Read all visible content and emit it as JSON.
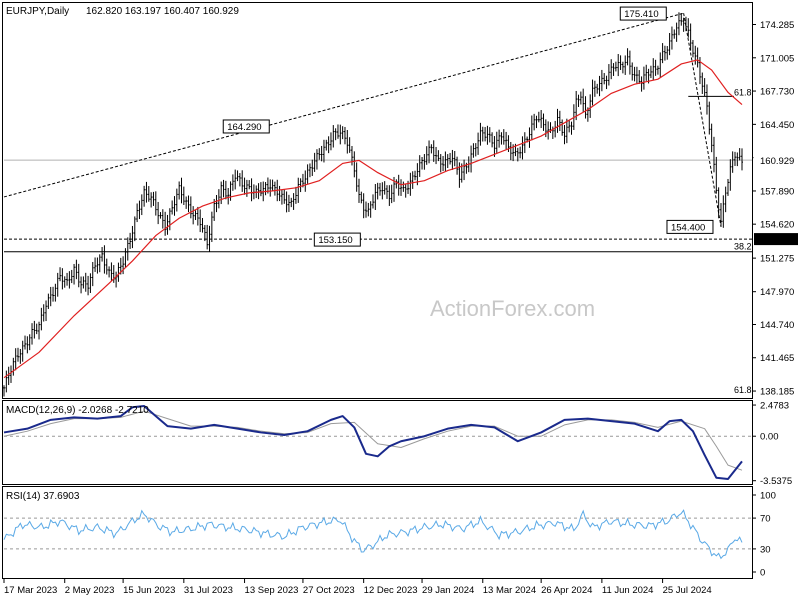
{
  "header": {
    "symbol": "EURJPY,Daily",
    "ohlc": "162.820 163.197 160.407 160.929"
  },
  "watermark": "ActionForex.com",
  "colors": {
    "candles": "#000000",
    "ma": "#e02020",
    "macd": "#1a2a8c",
    "signal": "#9a9a9a",
    "rsi": "#5aa9e6",
    "watermark": "#c8c8c8"
  },
  "chart_data": [
    {
      "type": "candlestick",
      "panel": "price",
      "title": "EURJPY,Daily",
      "y_ticks": [
        174.285,
        171.005,
        167.73,
        164.45,
        161.17,
        157.89,
        154.62,
        151.275,
        147.97,
        144.74,
        141.465,
        138.185
      ],
      "ylim": [
        137.5,
        176.5
      ],
      "current_price_label": "160.929",
      "current_price": 160.929,
      "support_line_label": "153.150",
      "support_level": 153.15,
      "annotations": [
        {
          "label": "175.410",
          "value": 175.41,
          "kind": "swing-high"
        },
        {
          "label": "164.290",
          "value": 164.29,
          "kind": "swing-high"
        },
        {
          "label": "153.150",
          "value": 153.15,
          "kind": "swing-low"
        },
        {
          "label": "154.400",
          "value": 154.4,
          "kind": "swing-low"
        }
      ],
      "fibonacci_labels": [
        "61.8",
        "38.2",
        "61.8"
      ],
      "series": [
        {
          "name": "EURJPY,Daily",
          "close_path": [
            [
              0,
              138.5
            ],
            [
              3,
              140.2
            ],
            [
              6,
              141.8
            ],
            [
              9,
              142.9
            ],
            [
              12,
              143.9
            ],
            [
              15,
              144.4
            ],
            [
              18,
              146.8
            ],
            [
              21,
              148.1
            ],
            [
              24,
              149.5
            ],
            [
              27,
              148.6
            ],
            [
              30,
              150.2
            ],
            [
              33,
              149.0
            ],
            [
              36,
              148.6
            ],
            [
              39,
              150.4
            ],
            [
              42,
              151.5
            ],
            [
              45,
              150.0
            ],
            [
              48,
              149.4
            ],
            [
              51,
              150.8
            ],
            [
              54,
              153.2
            ],
            [
              57,
              156.0
            ],
            [
              60,
              157.6
            ],
            [
              63,
              157.0
            ],
            [
              66,
              155.8
            ],
            [
              69,
              154.6
            ],
            [
              72,
              156.1
            ],
            [
              75,
              157.9
            ],
            [
              78,
              156.8
            ],
            [
              81,
              155.8
            ],
            [
              84,
              154.8
            ],
            [
              87,
              152.5
            ],
            [
              90,
              156.5
            ],
            [
              93,
              158.3
            ],
            [
              96,
              157.4
            ],
            [
              99,
              159.3
            ],
            [
              102,
              158.7
            ],
            [
              105,
              158.3
            ],
            [
              108,
              157.6
            ],
            [
              111,
              157.9
            ],
            [
              114,
              158.6
            ],
            [
              117,
              158.0
            ],
            [
              120,
              156.8
            ],
            [
              123,
              156.4
            ],
            [
              126,
              158.5
            ],
            [
              129,
              159.4
            ],
            [
              132,
              160.3
            ],
            [
              135,
              161.4
            ],
            [
              138,
              162.5
            ],
            [
              141,
              163.6
            ],
            [
              144,
              163.5
            ],
            [
              147,
              162.6
            ],
            [
              150,
              160.2
            ],
            [
              152,
              157.5
            ],
            [
              154,
              156.3
            ],
            [
              156,
              155.6
            ],
            [
              159,
              157.6
            ],
            [
              162,
              158.4
            ],
            [
              165,
              157.5
            ],
            [
              168,
              158.5
            ],
            [
              171,
              157.8
            ],
            [
              174,
              158.9
            ],
            [
              177,
              160.1
            ],
            [
              180,
              160.9
            ],
            [
              183,
              162.1
            ],
            [
              186,
              161.0
            ],
            [
              189,
              160.8
            ],
            [
              192,
              161.0
            ],
            [
              195,
              159.3
            ],
            [
              198,
              160.6
            ],
            [
              201,
              161.9
            ],
            [
              204,
              163.3
            ],
            [
              207,
              163.4
            ],
            [
              210,
              162.6
            ],
            [
              213,
              163.5
            ],
            [
              216,
              161.9
            ],
            [
              219,
              161.4
            ],
            [
              222,
              162.5
            ],
            [
              225,
              163.7
            ],
            [
              228,
              165.0
            ],
            [
              231,
              164.4
            ],
            [
              234,
              163.8
            ],
            [
              237,
              164.9
            ],
            [
              240,
              163.2
            ],
            [
              243,
              164.6
            ],
            [
              245,
              166.8
            ],
            [
              247,
              167.6
            ],
            [
              249,
              165.2
            ],
            [
              252,
              167.5
            ],
            [
              255,
              168.5
            ],
            [
              258,
              169.3
            ],
            [
              261,
              170.2
            ],
            [
              264,
              170.0
            ],
            [
              267,
              170.8
            ],
            [
              270,
              169.4
            ],
            [
              273,
              168.7
            ],
            [
              276,
              169.4
            ],
            [
              279,
              169.9
            ],
            [
              282,
              171.5
            ],
            [
              285,
              172.4
            ],
            [
              288,
              173.9
            ],
            [
              291,
              174.8
            ],
            [
              293,
              173.6
            ],
            [
              295,
              171.9
            ],
            [
              297,
              170.2
            ],
            [
              299,
              168.2
            ],
            [
              301,
              166.0
            ],
            [
              303,
              162.5
            ],
            [
              305,
              158.2
            ],
            [
              307,
              154.9
            ],
            [
              309,
              157.8
            ],
            [
              311,
              159.8
            ],
            [
              313,
              161.4
            ],
            [
              316,
              160.9
            ]
          ]
        }
      ],
      "moving_average": [
        [
          0,
          139.5
        ],
        [
          15,
          142.0
        ],
        [
          30,
          145.6
        ],
        [
          45,
          148.8
        ],
        [
          55,
          151.0
        ],
        [
          65,
          153.5
        ],
        [
          75,
          155.2
        ],
        [
          85,
          156.4
        ],
        [
          95,
          157.2
        ],
        [
          105,
          157.7
        ],
        [
          115,
          157.9
        ],
        [
          125,
          158.2
        ],
        [
          135,
          158.9
        ],
        [
          145,
          160.6
        ],
        [
          152,
          160.9
        ],
        [
          160,
          159.7
        ],
        [
          170,
          158.5
        ],
        [
          180,
          158.9
        ],
        [
          190,
          159.9
        ],
        [
          200,
          160.6
        ],
        [
          210,
          161.5
        ],
        [
          220,
          162.4
        ],
        [
          230,
          163.3
        ],
        [
          240,
          164.6
        ],
        [
          250,
          165.9
        ],
        [
          260,
          167.5
        ],
        [
          270,
          168.4
        ],
        [
          280,
          168.9
        ],
        [
          290,
          170.4
        ],
        [
          297,
          170.8
        ],
        [
          303,
          169.8
        ],
        [
          310,
          167.6
        ],
        [
          316,
          166.4
        ]
      ]
    },
    {
      "type": "line",
      "panel": "macd",
      "title": "MACD(12,26,9) -2.0268 -2.7210",
      "y_ticks": [
        "2.4783",
        "0.00",
        "-3.5375"
      ],
      "ylim": [
        -3.8,
        2.8
      ],
      "series": [
        {
          "name": "MACD",
          "x": [
            0,
            10,
            20,
            30,
            40,
            50,
            55,
            60,
            65,
            70,
            80,
            90,
            100,
            110,
            120,
            130,
            140,
            145,
            150,
            155,
            160,
            165,
            170,
            180,
            190,
            200,
            210,
            220,
            230,
            240,
            250,
            260,
            270,
            280,
            285,
            290,
            295,
            300,
            305,
            310,
            316
          ],
          "values": [
            0.3,
            0.6,
            1.3,
            1.5,
            1.4,
            1.6,
            2.3,
            2.4,
            1.6,
            0.8,
            0.6,
            0.9,
            0.6,
            0.3,
            0.1,
            0.4,
            1.3,
            1.6,
            0.7,
            -1.4,
            -1.6,
            -0.8,
            -0.4,
            0.0,
            0.6,
            0.9,
            0.7,
            -0.4,
            0.3,
            1.3,
            1.4,
            1.2,
            1.0,
            0.4,
            1.2,
            1.3,
            0.4,
            -1.5,
            -3.3,
            -3.4,
            -2.0
          ]
        },
        {
          "name": "Signal",
          "x": [
            0,
            10,
            20,
            30,
            40,
            50,
            60,
            70,
            80,
            90,
            100,
            110,
            120,
            130,
            140,
            150,
            160,
            170,
            180,
            190,
            200,
            210,
            220,
            230,
            240,
            250,
            260,
            270,
            280,
            290,
            300,
            305,
            310,
            316
          ],
          "values": [
            0.0,
            0.4,
            1.0,
            1.4,
            1.4,
            1.5,
            2.0,
            1.4,
            0.8,
            0.8,
            0.7,
            0.4,
            0.2,
            0.3,
            1.0,
            1.1,
            -0.6,
            -0.9,
            -0.2,
            0.4,
            0.8,
            0.8,
            0.0,
            0.0,
            0.9,
            1.3,
            1.3,
            1.1,
            0.7,
            1.2,
            0.6,
            -0.8,
            -2.3,
            -2.7
          ]
        }
      ]
    },
    {
      "type": "line",
      "panel": "rsi",
      "title": "RSI(14) 37.6903",
      "y_ticks": [
        "100",
        "70",
        "30",
        "0"
      ],
      "ylim": [
        0,
        100
      ],
      "series": [
        {
          "name": "RSI(14)",
          "x": [
            0,
            8,
            16,
            24,
            32,
            40,
            48,
            56,
            60,
            66,
            72,
            80,
            88,
            96,
            104,
            112,
            120,
            128,
            136,
            144,
            150,
            154,
            158,
            164,
            172,
            180,
            188,
            196,
            204,
            212,
            220,
            228,
            236,
            244,
            248,
            252,
            260,
            268,
            276,
            284,
            290,
            294,
            298,
            302,
            306,
            310,
            313,
            316
          ],
          "values": [
            42,
            62,
            58,
            66,
            54,
            58,
            50,
            68,
            75,
            60,
            52,
            56,
            62,
            58,
            55,
            50,
            46,
            58,
            64,
            68,
            40,
            28,
            35,
            48,
            52,
            58,
            62,
            56,
            66,
            48,
            52,
            60,
            64,
            55,
            75,
            58,
            66,
            62,
            60,
            66,
            78,
            62,
            44,
            30,
            18,
            28,
            45,
            37.7
          ]
        }
      ]
    },
    {
      "type": "axis",
      "panel": "x-axis",
      "x_ticks": [
        "17 Mar 2023",
        "2 May 2023",
        "15 Jun 2023",
        "31 Jul 2023",
        "13 Sep 2023",
        "27 Oct 2023",
        "12 Dec 2023",
        "29 Jan 2024",
        "13 Mar 2024",
        "26 Apr 2024",
        "11 Jun 2024",
        "25 Jul 2024"
      ]
    }
  ]
}
